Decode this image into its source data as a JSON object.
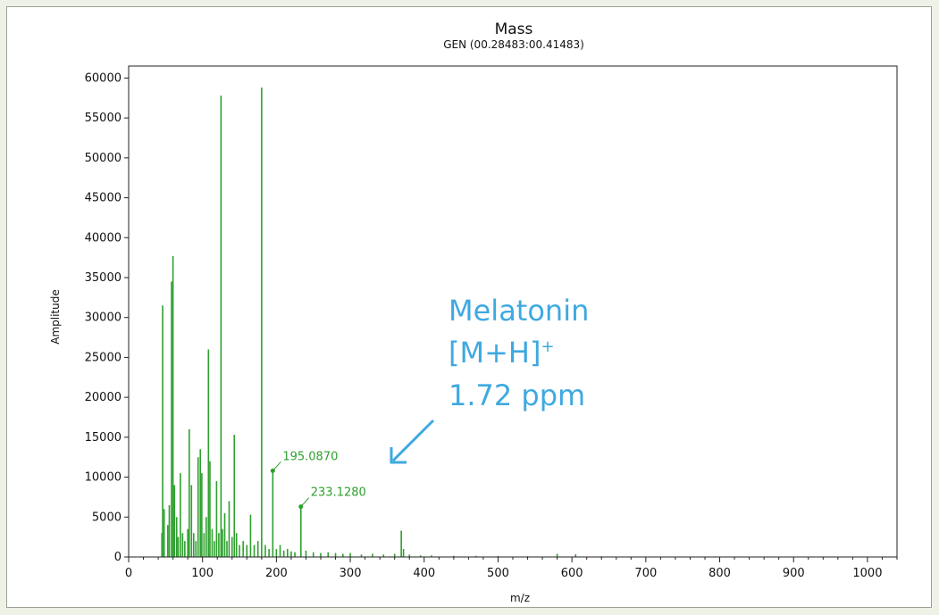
{
  "chart_data": {
    "type": "bar",
    "title": "Mass",
    "subtitle": "GEN (00.28483:00.41483)",
    "xlabel": "m/z",
    "ylabel": "Amplitude",
    "xlim": [
      0,
      1040
    ],
    "ylim": [
      0,
      61500
    ],
    "xticks": [
      0,
      100,
      200,
      300,
      400,
      500,
      600,
      700,
      800,
      900,
      1000
    ],
    "yticks": [
      0,
      5000,
      10000,
      15000,
      20000,
      25000,
      30000,
      35000,
      40000,
      45000,
      50000,
      55000,
      60000
    ],
    "grid": false,
    "colors": {
      "bars": "#2ea02e",
      "annotation": "#3ea9e0"
    },
    "peaks": [
      {
        "x": 45,
        "y": 3000
      },
      {
        "x": 46,
        "y": 31500
      },
      {
        "x": 48,
        "y": 6000
      },
      {
        "x": 53,
        "y": 4000
      },
      {
        "x": 55,
        "y": 6500
      },
      {
        "x": 58,
        "y": 34500
      },
      {
        "x": 60,
        "y": 37700
      },
      {
        "x": 62,
        "y": 9000
      },
      {
        "x": 65,
        "y": 5000
      },
      {
        "x": 67,
        "y": 2500
      },
      {
        "x": 70,
        "y": 10500
      },
      {
        "x": 73,
        "y": 3000
      },
      {
        "x": 76,
        "y": 2000
      },
      {
        "x": 80,
        "y": 3500
      },
      {
        "x": 82,
        "y": 16000
      },
      {
        "x": 85,
        "y": 9000
      },
      {
        "x": 88,
        "y": 3000
      },
      {
        "x": 91,
        "y": 2000
      },
      {
        "x": 94,
        "y": 12500
      },
      {
        "x": 97,
        "y": 13500
      },
      {
        "x": 99,
        "y": 10500
      },
      {
        "x": 102,
        "y": 3000
      },
      {
        "x": 105,
        "y": 5000
      },
      {
        "x": 108,
        "y": 26000
      },
      {
        "x": 110,
        "y": 12000
      },
      {
        "x": 113,
        "y": 3500
      },
      {
        "x": 116,
        "y": 2000
      },
      {
        "x": 119,
        "y": 9500
      },
      {
        "x": 122,
        "y": 3000
      },
      {
        "x": 125,
        "y": 57800
      },
      {
        "x": 127,
        "y": 3500
      },
      {
        "x": 130,
        "y": 5500
      },
      {
        "x": 133,
        "y": 2000
      },
      {
        "x": 136,
        "y": 7000
      },
      {
        "x": 140,
        "y": 2500
      },
      {
        "x": 143,
        "y": 15300
      },
      {
        "x": 146,
        "y": 3000
      },
      {
        "x": 150,
        "y": 1500
      },
      {
        "x": 155,
        "y": 2000
      },
      {
        "x": 160,
        "y": 1500
      },
      {
        "x": 165,
        "y": 5300
      },
      {
        "x": 170,
        "y": 1500
      },
      {
        "x": 175,
        "y": 2000
      },
      {
        "x": 180,
        "y": 58800
      },
      {
        "x": 185,
        "y": 1500
      },
      {
        "x": 190,
        "y": 1000
      },
      {
        "x": 195.087,
        "y": 10800
      },
      {
        "x": 200,
        "y": 1000
      },
      {
        "x": 205,
        "y": 1500
      },
      {
        "x": 210,
        "y": 800
      },
      {
        "x": 215,
        "y": 1000
      },
      {
        "x": 220,
        "y": 700
      },
      {
        "x": 225,
        "y": 600
      },
      {
        "x": 233.128,
        "y": 6300
      },
      {
        "x": 240,
        "y": 800
      },
      {
        "x": 250,
        "y": 600
      },
      {
        "x": 260,
        "y": 500
      },
      {
        "x": 270,
        "y": 600
      },
      {
        "x": 280,
        "y": 500
      },
      {
        "x": 290,
        "y": 400
      },
      {
        "x": 300,
        "y": 500
      },
      {
        "x": 315,
        "y": 300
      },
      {
        "x": 330,
        "y": 400
      },
      {
        "x": 345,
        "y": 300
      },
      {
        "x": 360,
        "y": 400
      },
      {
        "x": 369,
        "y": 3300
      },
      {
        "x": 372,
        "y": 1000
      },
      {
        "x": 380,
        "y": 300
      },
      {
        "x": 395,
        "y": 200
      },
      {
        "x": 410,
        "y": 200
      },
      {
        "x": 440,
        "y": 150
      },
      {
        "x": 470,
        "y": 150
      },
      {
        "x": 500,
        "y": 120
      },
      {
        "x": 540,
        "y": 100
      },
      {
        "x": 580,
        "y": 400
      },
      {
        "x": 605,
        "y": 350
      },
      {
        "x": 640,
        "y": 80
      },
      {
        "x": 700,
        "y": 60
      },
      {
        "x": 780,
        "y": 50
      },
      {
        "x": 860,
        "y": 50
      },
      {
        "x": 950,
        "y": 40
      }
    ],
    "peak_labels": [
      {
        "x": 195.087,
        "y": 10800,
        "text": "195.0870"
      },
      {
        "x": 233.128,
        "y": 6300,
        "text": "233.1280"
      }
    ],
    "annotation": {
      "line1": "Melatonin",
      "line2": "[M+H]",
      "line2_sup": "+",
      "line3": "1.72 ppm"
    }
  }
}
